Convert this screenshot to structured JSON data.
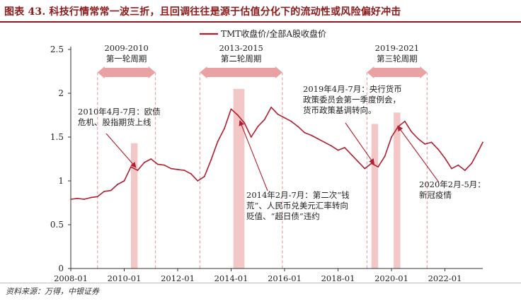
{
  "title": "图表 43. 科技行情常常一波三折，且回调往往是源于估值分化下的流动性或风险偏好冲击",
  "source": "资料来源：万得，中银证券",
  "colors": {
    "series": "#b01e2f",
    "shade": "#f4c7c7",
    "band": "#e9a1a1",
    "accent_title": "#8b1a1a"
  },
  "chart_data": {
    "type": "line",
    "series": [
      {
        "name": "TMT收盘价/全部A股收盘价",
        "points": [
          [
            "2008-01",
            0.79
          ],
          [
            "2008-04",
            0.8
          ],
          [
            "2008-07",
            0.79
          ],
          [
            "2008-10",
            0.81
          ],
          [
            "2009-01",
            0.82
          ],
          [
            "2009-04",
            0.88
          ],
          [
            "2009-07",
            0.89
          ],
          [
            "2009-10",
            0.96
          ],
          [
            "2010-01",
            1.0
          ],
          [
            "2010-04",
            1.16
          ],
          [
            "2010-07",
            1.12
          ],
          [
            "2010-10",
            1.21
          ],
          [
            "2011-01",
            1.25
          ],
          [
            "2011-04",
            1.19
          ],
          [
            "2011-07",
            1.18
          ],
          [
            "2011-10",
            1.14
          ],
          [
            "2012-01",
            1.13
          ],
          [
            "2012-04",
            1.12
          ],
          [
            "2012-07",
            1.08
          ],
          [
            "2012-10",
            1.0
          ],
          [
            "2013-01",
            1.05
          ],
          [
            "2013-04",
            1.24
          ],
          [
            "2013-07",
            1.45
          ],
          [
            "2013-10",
            1.6
          ],
          [
            "2014-01",
            1.82
          ],
          [
            "2014-04",
            1.75
          ],
          [
            "2014-07",
            1.66
          ],
          [
            "2014-10",
            1.5
          ],
          [
            "2015-01",
            1.62
          ],
          [
            "2015-04",
            1.7
          ],
          [
            "2015-07",
            1.84
          ],
          [
            "2015-10",
            1.76
          ],
          [
            "2016-01",
            1.72
          ],
          [
            "2016-04",
            1.68
          ],
          [
            "2016-07",
            1.62
          ],
          [
            "2016-10",
            1.55
          ],
          [
            "2017-01",
            1.52
          ],
          [
            "2017-04",
            1.48
          ],
          [
            "2017-07",
            1.44
          ],
          [
            "2017-10",
            1.4
          ],
          [
            "2018-01",
            1.35
          ],
          [
            "2018-04",
            1.38
          ],
          [
            "2018-07",
            1.3
          ],
          [
            "2018-10",
            1.22
          ],
          [
            "2019-01",
            1.14
          ],
          [
            "2019-04",
            1.2
          ],
          [
            "2019-07",
            1.16
          ],
          [
            "2019-10",
            1.28
          ],
          [
            "2020-01",
            1.5
          ],
          [
            "2020-04",
            1.62
          ],
          [
            "2020-07",
            1.68
          ],
          [
            "2020-10",
            1.56
          ],
          [
            "2021-01",
            1.48
          ],
          [
            "2021-04",
            1.42
          ],
          [
            "2021-07",
            1.44
          ],
          [
            "2021-10",
            1.36
          ],
          [
            "2022-01",
            1.26
          ],
          [
            "2022-04",
            1.14
          ],
          [
            "2022-07",
            1.18
          ],
          [
            "2022-10",
            1.12
          ],
          [
            "2023-01",
            1.2
          ],
          [
            "2023-04",
            1.34
          ],
          [
            "2023-06",
            1.44
          ]
        ]
      }
    ],
    "xlim": [
      "2008-01",
      "2023-06"
    ],
    "ylim": [
      0,
      2.5
    ],
    "x_ticks": [
      "2008-01",
      "2010-01",
      "2012-01",
      "2014-01",
      "2016-01",
      "2018-01",
      "2020-01",
      "2022-01"
    ],
    "y_ticks": [
      0,
      0.5,
      1,
      1.5,
      2,
      2.5
    ],
    "y_tick_labels": [
      "0",
      "0.5",
      "1",
      "1.5",
      "2",
      "2.5"
    ],
    "grid": false,
    "legend": {
      "position": "top-center",
      "entries": [
        "TMT收盘价/全部A股收盘价"
      ]
    },
    "cycles": [
      {
        "years": "2009-2010",
        "label": "第一轮周期",
        "start": "2009-01",
        "end": "2011-03"
      },
      {
        "years": "2013-2015",
        "label": "第二轮周期",
        "start": "2012-11",
        "end": "2015-12"
      },
      {
        "years": "2019-2021",
        "label": "第三轮周期",
        "start": "2019-02",
        "end": "2021-05"
      }
    ],
    "shaded_periods": [
      {
        "start": "2010-04",
        "end": "2010-07",
        "ymax": 1.43
      },
      {
        "start": "2014-02",
        "end": "2014-07",
        "ymax": 2.05
      },
      {
        "start": "2019-04",
        "end": "2019-07",
        "ymax": 1.65
      },
      {
        "start": "2020-02",
        "end": "2020-05",
        "ymax": 1.78
      }
    ],
    "annotations": [
      {
        "lines": [
          "2010年4月-7月：欧债",
          "危机、股指期货上线"
        ],
        "target": [
          "2010-06",
          1.16
        ]
      },
      {
        "lines": [
          "2014年2月-7月：第二次“钱",
          "荒”、人民币兑美元汇率转向",
          "贬值、“超日债”违约"
        ],
        "target": [
          "2014-05",
          1.68
        ]
      },
      {
        "lines": [
          "2019年4月-7月：央行货币",
          "政策委员会第一季度例会，",
          "货币政策基调转向。"
        ],
        "target": [
          "2019-05",
          1.2
        ]
      },
      {
        "lines": [
          "2020年2月-5月：",
          "新冠疫情"
        ],
        "target": [
          "2020-04",
          1.62
        ]
      }
    ]
  }
}
